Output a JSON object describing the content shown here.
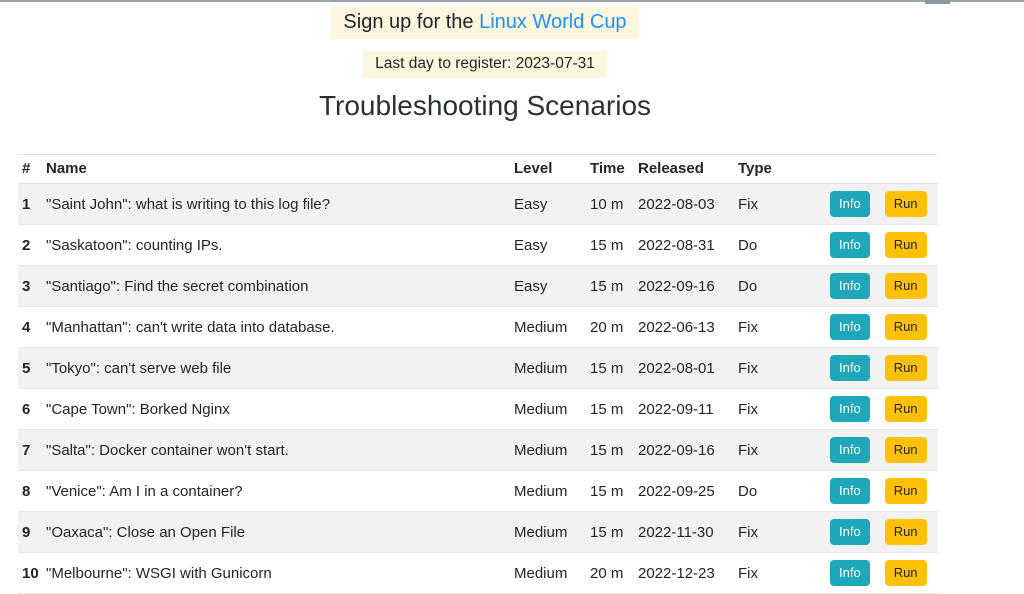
{
  "page": {
    "signup_banner": {
      "prefix": "Sign up for the ",
      "link_text": "Linux World Cup"
    },
    "deadline_banner": "Last day to register: 2023-07-31",
    "title": "Troubleshooting Scenarios"
  },
  "table": {
    "columns": [
      "#",
      "Name",
      "Level",
      "Time",
      "Released",
      "Type"
    ],
    "actions": {
      "info": "Info",
      "run": "Run"
    },
    "rows": [
      {
        "num": "1",
        "name": "\"Saint John\": what is writing to this log file?",
        "level": "Easy",
        "time": "10 m",
        "released": "2022-08-03",
        "type": "Fix"
      },
      {
        "num": "2",
        "name": "\"Saskatoon\": counting IPs.",
        "level": "Easy",
        "time": "15 m",
        "released": "2022-08-31",
        "type": "Do"
      },
      {
        "num": "3",
        "name": "\"Santiago\": Find the secret combination",
        "level": "Easy",
        "time": "15 m",
        "released": "2022-09-16",
        "type": "Do"
      },
      {
        "num": "4",
        "name": "\"Manhattan\": can't write data into database.",
        "level": "Medium",
        "time": "20 m",
        "released": "2022-06-13",
        "type": "Fix"
      },
      {
        "num": "5",
        "name": "\"Tokyo\": can't serve web file",
        "level": "Medium",
        "time": "15 m",
        "released": "2022-08-01",
        "type": "Fix"
      },
      {
        "num": "6",
        "name": "\"Cape Town\": Borked Nginx",
        "level": "Medium",
        "time": "15 m",
        "released": "2022-09-11",
        "type": "Fix"
      },
      {
        "num": "7",
        "name": "\"Salta\": Docker container won't start.",
        "level": "Medium",
        "time": "15 m",
        "released": "2022-09-16",
        "type": "Fix"
      },
      {
        "num": "8",
        "name": "\"Venice\": Am I in a container?",
        "level": "Medium",
        "time": "15 m",
        "released": "2022-09-25",
        "type": "Do"
      },
      {
        "num": "9",
        "name": "\"Oaxaca\": Close an Open File",
        "level": "Medium",
        "time": "15 m",
        "released": "2022-11-30",
        "type": "Fix"
      },
      {
        "num": "10",
        "name": "\"Melbourne\": WSGI with Gunicorn",
        "level": "Medium",
        "time": "20 m",
        "released": "2022-12-23",
        "type": "Fix"
      }
    ]
  },
  "colors": {
    "banner_bg": "#fdf6de",
    "link": "#1e90ff",
    "info_button": "#1da7b8",
    "info_button_text": "#ffffff",
    "run_button": "#ffc107",
    "run_button_text": "#212529",
    "stripe": "#f2f2f2"
  }
}
